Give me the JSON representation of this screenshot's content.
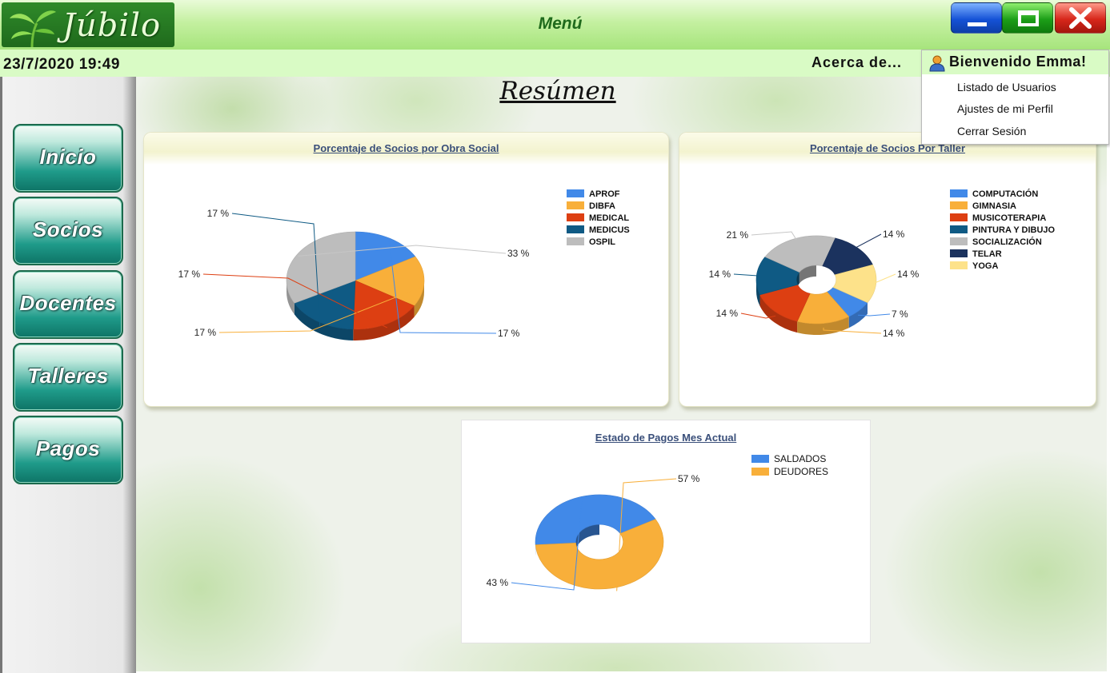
{
  "app": {
    "logo_text": "Júbilo",
    "window_title": "Menú"
  },
  "window_controls": {
    "minimize_icon": "minimize-icon",
    "maximize_icon": "maximize-icon",
    "close_icon": "close-icon"
  },
  "infobar": {
    "datetime": "23/7/2020  19:49",
    "about_link": "Acerca de..."
  },
  "user_menu": {
    "greeting": "Bienvenido Emma!",
    "icon": "user-icon",
    "items": [
      "Listado de Usuarios",
      "Ajustes de mi Perfil",
      "Cerrar Sesión"
    ]
  },
  "sidebar": {
    "items": [
      "Inicio",
      "Socios",
      "Docentes",
      "Talleres",
      "Pagos"
    ]
  },
  "main": {
    "heading": "Resúmen"
  },
  "colors": {
    "blue": "#4189e8",
    "orange": "#f8af3a",
    "red": "#dd3f12",
    "teal": "#0f5a84",
    "gray": "#bdbdbd",
    "navy": "#1b325e",
    "yellow": "#fde28a",
    "accent_green": "#1f6a1c"
  },
  "chart_data": [
    {
      "type": "pie",
      "title": "Porcentaje de Socios por Obra Social",
      "categories": [
        "APROF",
        "DIBFA",
        "MEDICAL",
        "MEDICUS",
        "OSPIL"
      ],
      "values": [
        17,
        17,
        17,
        17,
        33
      ],
      "labels": [
        "17 %",
        "17 %",
        "17 %",
        "17 %",
        "33 %"
      ],
      "colors": [
        "#4189e8",
        "#f8af3a",
        "#dd3f12",
        "#0f5a84",
        "#bdbdbd"
      ],
      "legend_position": "top-right",
      "style": "3d"
    },
    {
      "type": "pie",
      "title": "Porcentaje de Socios Por Taller",
      "categories": [
        "COMPUTACIÓN",
        "GIMNASIA",
        "MUSICOTERAPIA",
        "PINTURA Y DIBUJO",
        "SOCIALIZACIÓN",
        "TELAR",
        "YOGA"
      ],
      "values": [
        7,
        14,
        14,
        14,
        21,
        14,
        14
      ],
      "labels": [
        "7 %",
        "14 %",
        "14 %",
        "14 %",
        "21 %",
        "14 %",
        "14 %"
      ],
      "colors": [
        "#4189e8",
        "#f8af3a",
        "#dd3f12",
        "#0f5a84",
        "#bdbdbd",
        "#1b325e",
        "#fde28a"
      ],
      "legend_position": "top-right",
      "style": "3d-donut"
    },
    {
      "type": "pie",
      "title": "Estado de Pagos Mes Actual",
      "categories": [
        "SALDADOS",
        "DEUDORES"
      ],
      "values": [
        43,
        57
      ],
      "labels": [
        "43 %",
        "57 %"
      ],
      "colors": [
        "#4189e8",
        "#f8af3a"
      ],
      "legend_position": "top-right",
      "style": "3d-donut"
    }
  ]
}
